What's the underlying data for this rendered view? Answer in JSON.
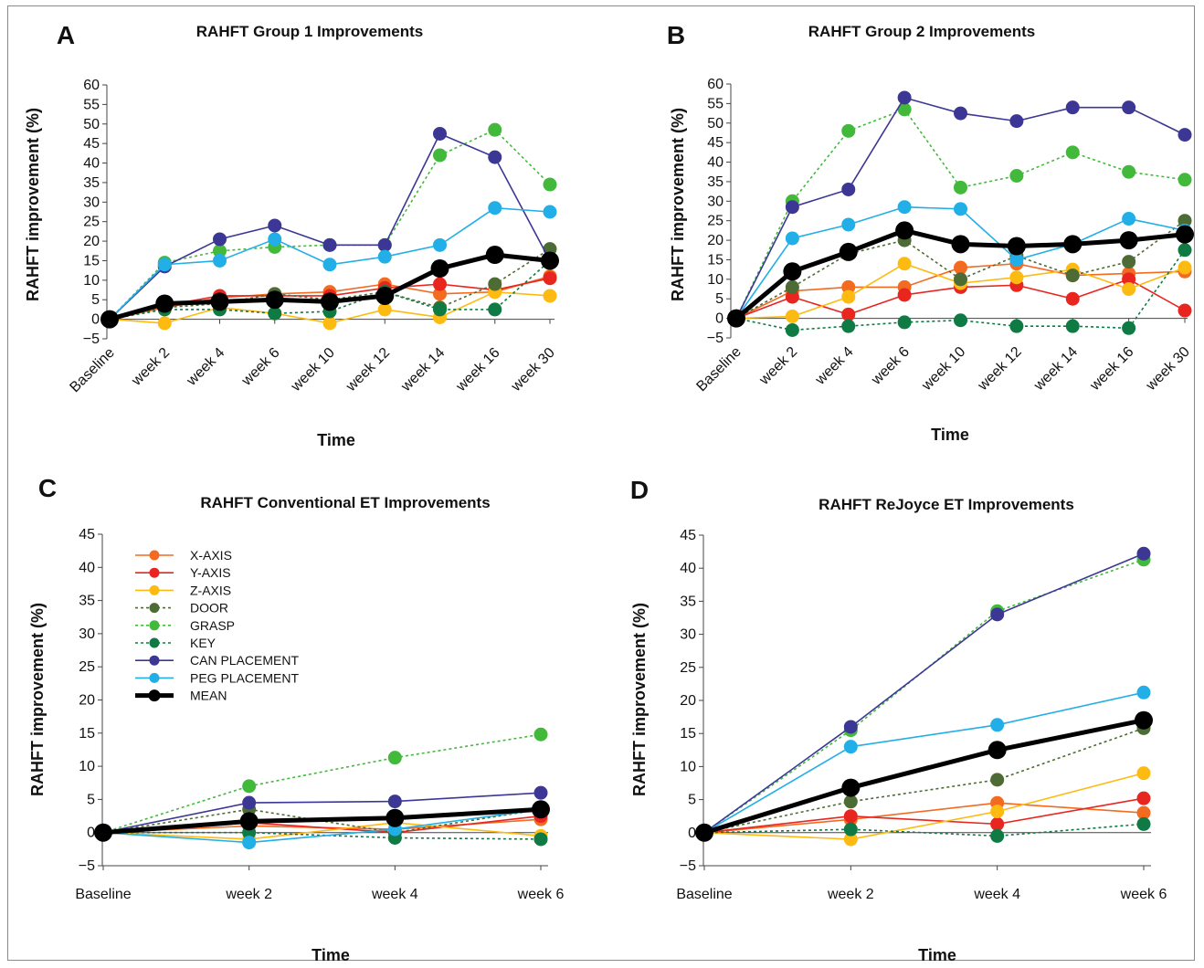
{
  "figure": {
    "series_styles": [
      {
        "name": "X-AXIS",
        "color": "#f26b21",
        "dash": "solid",
        "width": "thin"
      },
      {
        "name": "Y-AXIS",
        "color": "#e8251f",
        "dash": "solid",
        "width": "thin"
      },
      {
        "name": "Z-AXIS",
        "color": "#fdbb11",
        "dash": "solid",
        "width": "thin"
      },
      {
        "name": "DOOR",
        "color": "#4d6b34",
        "dash": "dotted",
        "width": "thin"
      },
      {
        "name": "GRASP",
        "color": "#43b93c",
        "dash": "dotted",
        "width": "thin"
      },
      {
        "name": "KEY",
        "color": "#0f7a43",
        "dash": "dotted",
        "width": "thin"
      },
      {
        "name": "CAN PLACEMENT",
        "color": "#3c3795",
        "dash": "solid",
        "width": "thin"
      },
      {
        "name": "PEG PLACEMENT",
        "color": "#22aee6",
        "dash": "solid",
        "width": "thin"
      },
      {
        "name": "MEAN",
        "color": "#000000",
        "dash": "solid",
        "width": "thick"
      }
    ]
  },
  "chart_data": [
    {
      "panel": "A",
      "type": "line",
      "title": "RAHFT Group 1 Improvements",
      "xlabel": "Time",
      "ylabel": "RAHFT improvement (%)",
      "ylim": [
        -5,
        60
      ],
      "yticks": [
        -5,
        0,
        5,
        10,
        15,
        20,
        25,
        30,
        35,
        40,
        45,
        50,
        55,
        60
      ],
      "categories": [
        "Baseline",
        "week 2",
        "week 4",
        "week 6",
        "week 10",
        "week 12",
        "week 14",
        "week 16",
        "week 30"
      ],
      "series": [
        {
          "name": "X-AXIS",
          "values": [
            0,
            3,
            5.5,
            6.5,
            7,
            9,
            6.5,
            7,
            11
          ]
        },
        {
          "name": "Y-AXIS",
          "values": [
            0,
            3.5,
            6,
            6,
            6,
            8,
            9,
            7.5,
            10.5
          ]
        },
        {
          "name": "Z-AXIS",
          "values": [
            0,
            -1,
            3,
            1.5,
            -1,
            2.5,
            0.5,
            7,
            6
          ]
        },
        {
          "name": "DOOR",
          "values": [
            0,
            3,
            4,
            6.5,
            5,
            7,
            3,
            9,
            18
          ]
        },
        {
          "name": "GRASP",
          "values": [
            0,
            14.5,
            17.5,
            18.5,
            19,
            19,
            42,
            48.5,
            34.5
          ]
        },
        {
          "name": "KEY",
          "values": [
            0,
            2.5,
            2.5,
            1.5,
            2,
            7,
            2.5,
            2.5,
            15
          ]
        },
        {
          "name": "CAN PLACEMENT",
          "values": [
            0,
            13.5,
            20.5,
            24,
            19,
            19,
            47.5,
            41.5,
            15
          ]
        },
        {
          "name": "PEG PLACEMENT",
          "values": [
            0,
            14,
            15,
            20.5,
            14,
            16,
            19,
            28.5,
            27.5
          ]
        },
        {
          "name": "MEAN",
          "values": [
            0,
            4,
            4.5,
            5,
            4.5,
            6,
            13,
            16.5,
            15
          ]
        }
      ]
    },
    {
      "panel": "B",
      "type": "line",
      "title": "RAHFT Group 2 Improvements",
      "xlabel": "Time",
      "ylabel": "RAHFT improvement (%)",
      "ylim": [
        -5,
        60
      ],
      "yticks": [
        -5,
        0,
        5,
        10,
        15,
        20,
        25,
        30,
        35,
        40,
        45,
        50,
        55,
        60
      ],
      "categories": [
        "Baseline",
        "week 2",
        "week 4",
        "week 6",
        "week 10",
        "week 12",
        "week 14",
        "week 16",
        "week 30"
      ],
      "series": [
        {
          "name": "X-AXIS",
          "values": [
            0,
            7,
            8,
            8,
            13,
            14,
            11,
            11.5,
            12
          ]
        },
        {
          "name": "Y-AXIS",
          "values": [
            0,
            5.5,
            1,
            6,
            8,
            8.5,
            5,
            10,
            2
          ]
        },
        {
          "name": "Z-AXIS",
          "values": [
            0,
            0.5,
            5.5,
            14,
            9,
            10.5,
            12.5,
            7.5,
            13
          ]
        },
        {
          "name": "DOOR",
          "values": [
            0,
            8,
            16.5,
            20,
            10,
            16,
            11,
            14.5,
            25
          ]
        },
        {
          "name": "GRASP",
          "values": [
            0,
            30,
            48,
            53.5,
            33.5,
            36.5,
            42.5,
            37.5,
            35.5
          ]
        },
        {
          "name": "KEY",
          "values": [
            0,
            -3,
            -2,
            -1,
            -0.5,
            -2,
            -2,
            -2.5,
            17.5
          ]
        },
        {
          "name": "CAN PLACEMENT",
          "values": [
            0,
            28.5,
            33,
            56.5,
            52.5,
            50.5,
            54,
            54,
            47
          ]
        },
        {
          "name": "PEG PLACEMENT",
          "values": [
            0,
            20.5,
            24,
            28.5,
            28,
            15,
            19,
            25.5,
            22.5
          ]
        },
        {
          "name": "MEAN",
          "values": [
            0,
            12,
            17,
            22.5,
            19,
            18.5,
            19,
            20,
            21.5
          ]
        }
      ]
    },
    {
      "panel": "C",
      "type": "line",
      "title": "RAHFT Conventional ET Improvements",
      "xlabel": "Time",
      "ylabel": "RAHFT improvement (%)",
      "ylim": [
        -5,
        45
      ],
      "yticks": [
        -5,
        0,
        5,
        10,
        15,
        20,
        25,
        30,
        35,
        40,
        45
      ],
      "categories": [
        "Baseline",
        "week 2",
        "week 4",
        "week 6"
      ],
      "legend": "top-left",
      "series": [
        {
          "name": "X-AXIS",
          "values": [
            0,
            1,
            0.5,
            2
          ]
        },
        {
          "name": "Y-AXIS",
          "values": [
            0,
            1.5,
            0,
            2.5
          ]
        },
        {
          "name": "Z-AXIS",
          "values": [
            0,
            -1,
            1.5,
            -0.5
          ]
        },
        {
          "name": "DOOR",
          "values": [
            0,
            3.5,
            0,
            3.5
          ]
        },
        {
          "name": "GRASP",
          "values": [
            0,
            7,
            11.3,
            14.8
          ]
        },
        {
          "name": "KEY",
          "values": [
            0,
            0,
            -0.8,
            -1
          ]
        },
        {
          "name": "CAN PLACEMENT",
          "values": [
            0,
            4.5,
            4.7,
            6
          ]
        },
        {
          "name": "PEG PLACEMENT",
          "values": [
            0,
            -1.5,
            0.5,
            3.5
          ]
        },
        {
          "name": "MEAN",
          "values": [
            0,
            1.7,
            2.2,
            3.5
          ]
        }
      ]
    },
    {
      "panel": "D",
      "type": "line",
      "title": "RAHFT ReJoyce ET Improvements",
      "xlabel": "Time",
      "ylabel": "RAHFT improvement (%)",
      "ylim": [
        -5,
        45
      ],
      "yticks": [
        -5,
        0,
        5,
        10,
        15,
        20,
        25,
        30,
        35,
        40,
        45
      ],
      "categories": [
        "Baseline",
        "week 2",
        "week 4",
        "week 6"
      ],
      "series": [
        {
          "name": "X-AXIS",
          "values": [
            0,
            2,
            4.5,
            3
          ]
        },
        {
          "name": "Y-AXIS",
          "values": [
            0,
            2.5,
            1.3,
            5.2
          ]
        },
        {
          "name": "Z-AXIS",
          "values": [
            0,
            -1,
            3.2,
            9
          ]
        },
        {
          "name": "DOOR",
          "values": [
            0,
            4.7,
            8,
            15.8
          ]
        },
        {
          "name": "GRASP",
          "values": [
            0,
            15.5,
            33.5,
            41.3
          ]
        },
        {
          "name": "KEY",
          "values": [
            0,
            0.5,
            -0.5,
            1.3
          ]
        },
        {
          "name": "CAN PLACEMENT",
          "values": [
            0,
            16,
            33,
            42.2
          ]
        },
        {
          "name": "PEG PLACEMENT",
          "values": [
            0,
            13,
            16.3,
            21.2
          ]
        },
        {
          "name": "MEAN",
          "values": [
            0,
            6.8,
            12.5,
            17
          ]
        }
      ]
    }
  ]
}
